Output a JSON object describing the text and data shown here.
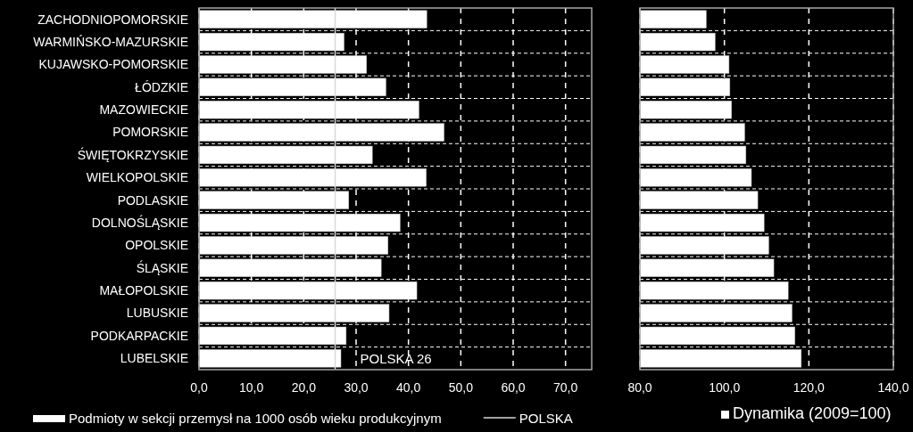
{
  "chart_data": [
    {
      "type": "bar",
      "orientation": "horizontal",
      "categories": [
        "ZACHODNIOPOMORSKIE",
        "WARMIŃSKO-MAZURSKIE",
        "KUJAWSKO-POMORSKIE",
        "ŁÓDZKIE",
        "MAZOWIECKIE",
        "POMORSKIE",
        "ŚWIĘTOKRZYSKIE",
        "WIELKOPOLSKIE",
        "PODLASKIE",
        "DOLNOŚLĄSKIE",
        "OPOLSKIE",
        "ŚLĄSKIE",
        "MAŁOPOLSKIE",
        "LUBUSKIE",
        "PODKARPACKIE",
        "LUBELSKIE"
      ],
      "series": [
        {
          "name": "Podmioty w sekcji przemysł na 1000 osób wieku produkcyjnym",
          "color": "#ffffff",
          "values": [
            43.5,
            27.7,
            32.0,
            35.7,
            42.0,
            46.8,
            33.1,
            43.4,
            28.6,
            38.4,
            36.1,
            34.8,
            41.6,
            36.3,
            28.1,
            27.1
          ]
        }
      ],
      "xlim": [
        0,
        75
      ],
      "xticks": [
        {
          "value": 0,
          "label": "0,0"
        },
        {
          "value": 10,
          "label": "10,0"
        },
        {
          "value": 20,
          "label": "20,0"
        },
        {
          "value": 30,
          "label": "30,0"
        },
        {
          "value": 40,
          "label": "40,0"
        },
        {
          "value": 50,
          "label": "50,0"
        },
        {
          "value": 60,
          "label": "60,0"
        },
        {
          "value": 70,
          "label": "70,0"
        }
      ],
      "grid": true,
      "legend": "bottom",
      "ref_lines": [
        {
          "axis": "x",
          "value": 26,
          "label": "POLSKA",
          "color": "#d9d9d9"
        }
      ],
      "annotations": [
        {
          "text": "POLSKA 26",
          "x": 26,
          "y": "LUBELSKIE"
        }
      ]
    },
    {
      "type": "bar",
      "orientation": "horizontal",
      "categories": [
        null,
        null,
        null,
        null,
        null,
        null,
        null,
        null,
        null,
        null,
        null,
        null,
        null,
        null,
        null,
        null
      ],
      "series": [
        {
          "name": "Dynamika (2009=100)",
          "color": "#ffffff",
          "values": [
            95.7,
            97.8,
            101.1,
            101.3,
            101.7,
            104.8,
            105.1,
            106.4,
            107.9,
            109.4,
            110.5,
            111.7,
            115.1,
            116.0,
            116.7,
            118.2
          ]
        }
      ],
      "xlim": [
        80,
        140
      ],
      "xticks": [
        {
          "value": 80,
          "label": "80,0"
        },
        {
          "value": 100,
          "label": "100,0"
        },
        {
          "value": 120,
          "label": "120,0"
        },
        {
          "value": 140,
          "label": "140,0"
        }
      ],
      "grid": true,
      "legend": "bottom"
    }
  ]
}
